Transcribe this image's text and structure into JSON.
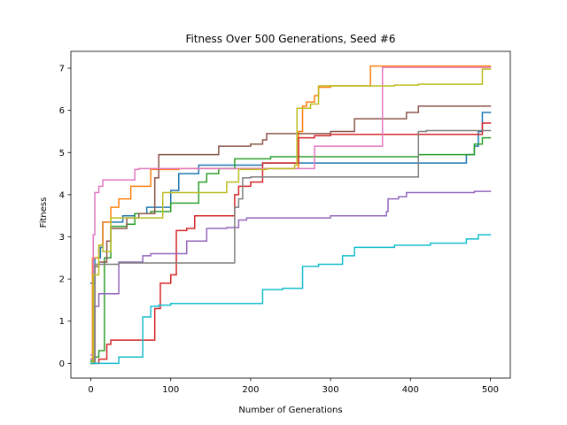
{
  "chart_data": {
    "type": "line",
    "title": "Fitness Over 500 Generations, Seed #6",
    "xlabel": "Number of Generations",
    "ylabel": "Fitness",
    "xlim": [
      -25,
      525
    ],
    "ylim": [
      -0.35,
      7.4
    ],
    "xticks": [
      0,
      100,
      200,
      300,
      400,
      500
    ],
    "yticks": [
      0,
      1,
      2,
      3,
      4,
      5,
      6,
      7
    ],
    "grid": false,
    "legend": "none",
    "step": "post",
    "series": [
      {
        "color": "#1f77b4",
        "points": [
          [
            0,
            1.9
          ],
          [
            5,
            2.5
          ],
          [
            12,
            2.75
          ],
          [
            15,
            3.35
          ],
          [
            30,
            3.35
          ],
          [
            40,
            3.5
          ],
          [
            55,
            3.55
          ],
          [
            70,
            3.7
          ],
          [
            100,
            4.1
          ],
          [
            110,
            4.5
          ],
          [
            135,
            4.7
          ],
          [
            215,
            4.75
          ],
          [
            470,
            4.95
          ],
          [
            480,
            5.15
          ],
          [
            485,
            5.5
          ],
          [
            490,
            5.95
          ],
          [
            500,
            5.95
          ]
        ]
      },
      {
        "color": "#ff7f0e",
        "points": [
          [
            0,
            0.0
          ],
          [
            2,
            2.5
          ],
          [
            10,
            2.8
          ],
          [
            15,
            3.35
          ],
          [
            25,
            3.7
          ],
          [
            35,
            3.9
          ],
          [
            50,
            4.2
          ],
          [
            75,
            4.6
          ],
          [
            110,
            4.62
          ],
          [
            260,
            5.5
          ],
          [
            265,
            6.1
          ],
          [
            270,
            6.2
          ],
          [
            280,
            6.35
          ],
          [
            285,
            6.55
          ],
          [
            300,
            6.58
          ],
          [
            340,
            6.58
          ],
          [
            350,
            7.05
          ],
          [
            500,
            7.05
          ]
        ]
      },
      {
        "color": "#2ca02c",
        "points": [
          [
            0,
            0.05
          ],
          [
            5,
            0.15
          ],
          [
            10,
            0.3
          ],
          [
            17,
            2.5
          ],
          [
            25,
            3.25
          ],
          [
            45,
            3.3
          ],
          [
            55,
            3.55
          ],
          [
            75,
            3.6
          ],
          [
            100,
            3.8
          ],
          [
            135,
            4.3
          ],
          [
            145,
            4.5
          ],
          [
            160,
            4.62
          ],
          [
            175,
            4.62
          ],
          [
            180,
            4.85
          ],
          [
            225,
            4.9
          ],
          [
            410,
            4.95
          ],
          [
            480,
            5.2
          ],
          [
            490,
            5.35
          ],
          [
            500,
            5.35
          ]
        ]
      },
      {
        "color": "#d62728",
        "points": [
          [
            0,
            0.0
          ],
          [
            10,
            0.1
          ],
          [
            20,
            0.45
          ],
          [
            25,
            0.55
          ],
          [
            80,
            1.3
          ],
          [
            87,
            1.9
          ],
          [
            100,
            2.1
          ],
          [
            107,
            3.15
          ],
          [
            120,
            3.2
          ],
          [
            130,
            3.5
          ],
          [
            175,
            3.5
          ],
          [
            180,
            4.0
          ],
          [
            185,
            4.2
          ],
          [
            200,
            4.3
          ],
          [
            215,
            4.75
          ],
          [
            230,
            4.75
          ],
          [
            260,
            5.35
          ],
          [
            280,
            5.4
          ],
          [
            300,
            5.43
          ],
          [
            490,
            5.7
          ],
          [
            500,
            5.7
          ]
        ]
      },
      {
        "color": "#9467bd",
        "points": [
          [
            0,
            0.1
          ],
          [
            5,
            1.35
          ],
          [
            10,
            1.65
          ],
          [
            35,
            2.4
          ],
          [
            65,
            2.55
          ],
          [
            75,
            2.6
          ],
          [
            120,
            2.9
          ],
          [
            145,
            3.2
          ],
          [
            170,
            3.22
          ],
          [
            185,
            3.4
          ],
          [
            195,
            3.45
          ],
          [
            300,
            3.5
          ],
          [
            370,
            3.6
          ],
          [
            372,
            3.9
          ],
          [
            385,
            3.95
          ],
          [
            395,
            4.05
          ],
          [
            480,
            4.08
          ],
          [
            500,
            4.08
          ]
        ]
      },
      {
        "color": "#8c564b",
        "points": [
          [
            0,
            0.0
          ],
          [
            5,
            2.3
          ],
          [
            10,
            2.4
          ],
          [
            20,
            2.9
          ],
          [
            25,
            3.2
          ],
          [
            45,
            3.45
          ],
          [
            60,
            3.55
          ],
          [
            80,
            4.4
          ],
          [
            85,
            4.95
          ],
          [
            160,
            5.15
          ],
          [
            200,
            5.2
          ],
          [
            215,
            5.3
          ],
          [
            220,
            5.45
          ],
          [
            300,
            5.5
          ],
          [
            330,
            5.8
          ],
          [
            395,
            5.95
          ],
          [
            410,
            6.1
          ],
          [
            500,
            6.1
          ]
        ]
      },
      {
        "color": "#e377c2",
        "points": [
          [
            0,
            0.2
          ],
          [
            3,
            3.05
          ],
          [
            5,
            4.05
          ],
          [
            10,
            4.2
          ],
          [
            15,
            4.35
          ],
          [
            55,
            4.6
          ],
          [
            60,
            4.62
          ],
          [
            280,
            5.15
          ],
          [
            365,
            7.02
          ],
          [
            500,
            7.02
          ]
        ]
      },
      {
        "color": "#7f7f7f",
        "points": [
          [
            0,
            0.0
          ],
          [
            5,
            2.35
          ],
          [
            20,
            2.35
          ],
          [
            35,
            2.38
          ],
          [
            180,
            3.7
          ],
          [
            185,
            3.9
          ],
          [
            190,
            4.4
          ],
          [
            200,
            4.42
          ],
          [
            410,
            5.5
          ],
          [
            420,
            5.52
          ],
          [
            500,
            5.52
          ]
        ]
      },
      {
        "color": "#bcbd22",
        "points": [
          [
            0,
            0.0
          ],
          [
            3,
            2.1
          ],
          [
            10,
            2.8
          ],
          [
            15,
            2.65
          ],
          [
            25,
            3.45
          ],
          [
            35,
            3.45
          ],
          [
            90,
            4.05
          ],
          [
            170,
            4.3
          ],
          [
            185,
            4.6
          ],
          [
            220,
            4.62
          ],
          [
            255,
            4.7
          ],
          [
            258,
            6.05
          ],
          [
            275,
            6.15
          ],
          [
            285,
            6.58
          ],
          [
            380,
            6.6
          ],
          [
            410,
            6.62
          ],
          [
            490,
            6.98
          ],
          [
            500,
            6.98
          ]
        ]
      },
      {
        "color": "#17becf",
        "points": [
          [
            0,
            0.0
          ],
          [
            35,
            0.15
          ],
          [
            65,
            1.1
          ],
          [
            75,
            1.35
          ],
          [
            85,
            1.38
          ],
          [
            100,
            1.42
          ],
          [
            215,
            1.75
          ],
          [
            240,
            1.78
          ],
          [
            265,
            2.3
          ],
          [
            285,
            2.35
          ],
          [
            315,
            2.55
          ],
          [
            330,
            2.75
          ],
          [
            380,
            2.8
          ],
          [
            425,
            2.85
          ],
          [
            470,
            2.95
          ],
          [
            485,
            3.05
          ],
          [
            500,
            3.05
          ]
        ]
      }
    ]
  }
}
